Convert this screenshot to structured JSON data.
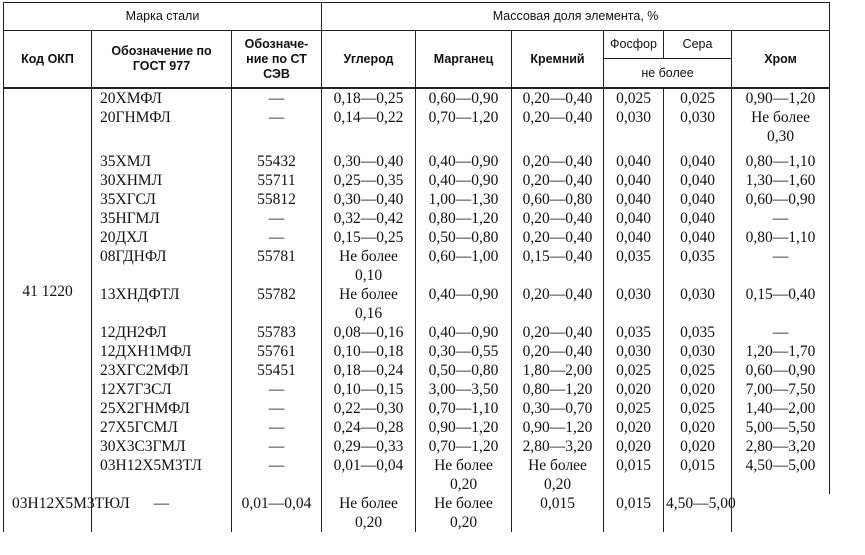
{
  "header": {
    "grade_group": "Марка стали",
    "mass_fraction_group": "Массовая доля элемента, %",
    "okp_code": "Код ОКП",
    "gost_designation": "Обозначение по ГОСТ 977",
    "cmea_designation": "Обозначе-ние по СТ СЭВ",
    "carbon": "Углерод",
    "manganese": "Марганец",
    "silicon": "Кремний",
    "phosphorus": "Фосфор",
    "sulfur": "Сера",
    "not_more": "не более",
    "chromium": "Хром"
  },
  "okp_value": "41 1220",
  "rows": [
    {
      "grade": "20ХМФЛ",
      "cmea": "—",
      "c": "0,18—0,25",
      "mn": "0,60—0,90",
      "si": "0,20—0,40",
      "p": "0,025",
      "s": "0,025",
      "cr": "0,90—1,20"
    },
    {
      "grade": "20ГНМФЛ",
      "cmea": "—",
      "c": "0,14—0,22",
      "mn": "0,70—1,20",
      "si": "0,20—0,40",
      "p": "0,030",
      "s": "0,030",
      "cr": "Не более",
      "cr2": "0,30"
    },
    {
      "grade": "35ХМЛ",
      "cmea": "55432",
      "c": "0,30—0,40",
      "mn": "0,40—0,90",
      "si": "0,20—0,40",
      "p": "0,040",
      "s": "0,040",
      "cr": "0,80—1,10"
    },
    {
      "grade": "30ХНМЛ",
      "cmea": "55711",
      "c": "0,25—0,35",
      "mn": "0,40—0,90",
      "si": "0,20—0,40",
      "p": "0,040",
      "s": "0,040",
      "cr": "1,30—1,60"
    },
    {
      "grade": "35ХГСЛ",
      "cmea": "55812",
      "c": "0,30—0,40",
      "mn": "1,00—1,30",
      "si": "0,60—0,80",
      "p": "0,040",
      "s": "0,040",
      "cr": "0,60—0,90"
    },
    {
      "grade": "35НГМЛ",
      "cmea": "—",
      "c": "0,32—0,42",
      "mn": "0,80—1,20",
      "si": "0,20—0,40",
      "p": "0,040",
      "s": "0,040",
      "cr": "—"
    },
    {
      "grade": "20ДХЛ",
      "cmea": "—",
      "c": "0,15—0,25",
      "mn": "0,50—0,80",
      "si": "0,20—0,40",
      "p": "0,040",
      "s": "0,040",
      "cr": "0,80—1,10"
    },
    {
      "grade": "08ГДНФЛ",
      "cmea": "55781",
      "c": "Не более",
      "c2": "0,10",
      "mn": "0,60—1,00",
      "si": "0,15—0,40",
      "p": "0,035",
      "s": "0,035",
      "cr": "—"
    },
    {
      "grade": "13ХНДФТЛ",
      "cmea": "55782",
      "c": "Не более",
      "c2": "0,16",
      "mn": "0,40—0,90",
      "si": "0,20—0,40",
      "p": "0,030",
      "s": "0,030",
      "cr": "0,15—0,40"
    },
    {
      "grade": "12ДН2ФЛ",
      "cmea": "55783",
      "c": "0,08—0,16",
      "mn": "0,40—0,90",
      "si": "0,20—0,40",
      "p": "0,035",
      "s": "0,035",
      "cr": "—"
    },
    {
      "grade": "12ДХН1МФЛ",
      "cmea": "55761",
      "c": "0,10—0,18",
      "mn": "0,30—0,55",
      "si": "0,20—0,40",
      "p": "0,030",
      "s": "0,030",
      "cr": "1,20—1,70"
    },
    {
      "grade": "23ХГС2МФЛ",
      "cmea": "55451",
      "c": "0,18—0,24",
      "mn": "0,50—0,80",
      "si": "1,80—2,00",
      "p": "0,025",
      "s": "0,025",
      "cr": "0,60—0,90"
    },
    {
      "grade": "12Х7Г3СЛ",
      "cmea": "—",
      "c": "0,10—0,15",
      "mn": "3,00—3,50",
      "si": "0,80—1,20",
      "p": "0,020",
      "s": "0,020",
      "cr": "7,00—7,50"
    },
    {
      "grade": "25Х2ГНМФЛ",
      "cmea": "—",
      "c": "0,22—0,30",
      "mn": "0,70—1,10",
      "si": "0,30—0,70",
      "p": "0,025",
      "s": "0,025",
      "cr": "1,40—2,00"
    },
    {
      "grade": "27Х5ГСМЛ",
      "cmea": "—",
      "c": "0,24—0,28",
      "mn": "0,90—1,20",
      "si": "0,90—1,20",
      "p": "0,020",
      "s": "0,020",
      "cr": "5,00—5,50"
    },
    {
      "grade": "30Х3С3ГМЛ",
      "cmea": "—",
      "c": "0,29—0,33",
      "mn": "0,70—1,20",
      "si": "2,80—3,20",
      "p": "0,020",
      "s": "0,020",
      "cr": "2,80—3,20"
    },
    {
      "grade": "03Н12Х5М3ТЛ",
      "cmea": "—",
      "c": "0,01—0,04",
      "mn": "Не более",
      "mn2": "0,20",
      "si": "Не более",
      "si2": "0,20",
      "p": "0,015",
      "s": "0,015",
      "cr": "4,50—5,00"
    },
    {
      "grade": "03Н12Х5М3ТЮЛ",
      "cmea": "—",
      "c": "0,01—0,04",
      "mn": "Не более",
      "mn2": "0,20",
      "si": "Не более",
      "si2": "0,20",
      "p": "0,015",
      "s": "0,015",
      "cr": "4,50—5,00"
    }
  ]
}
